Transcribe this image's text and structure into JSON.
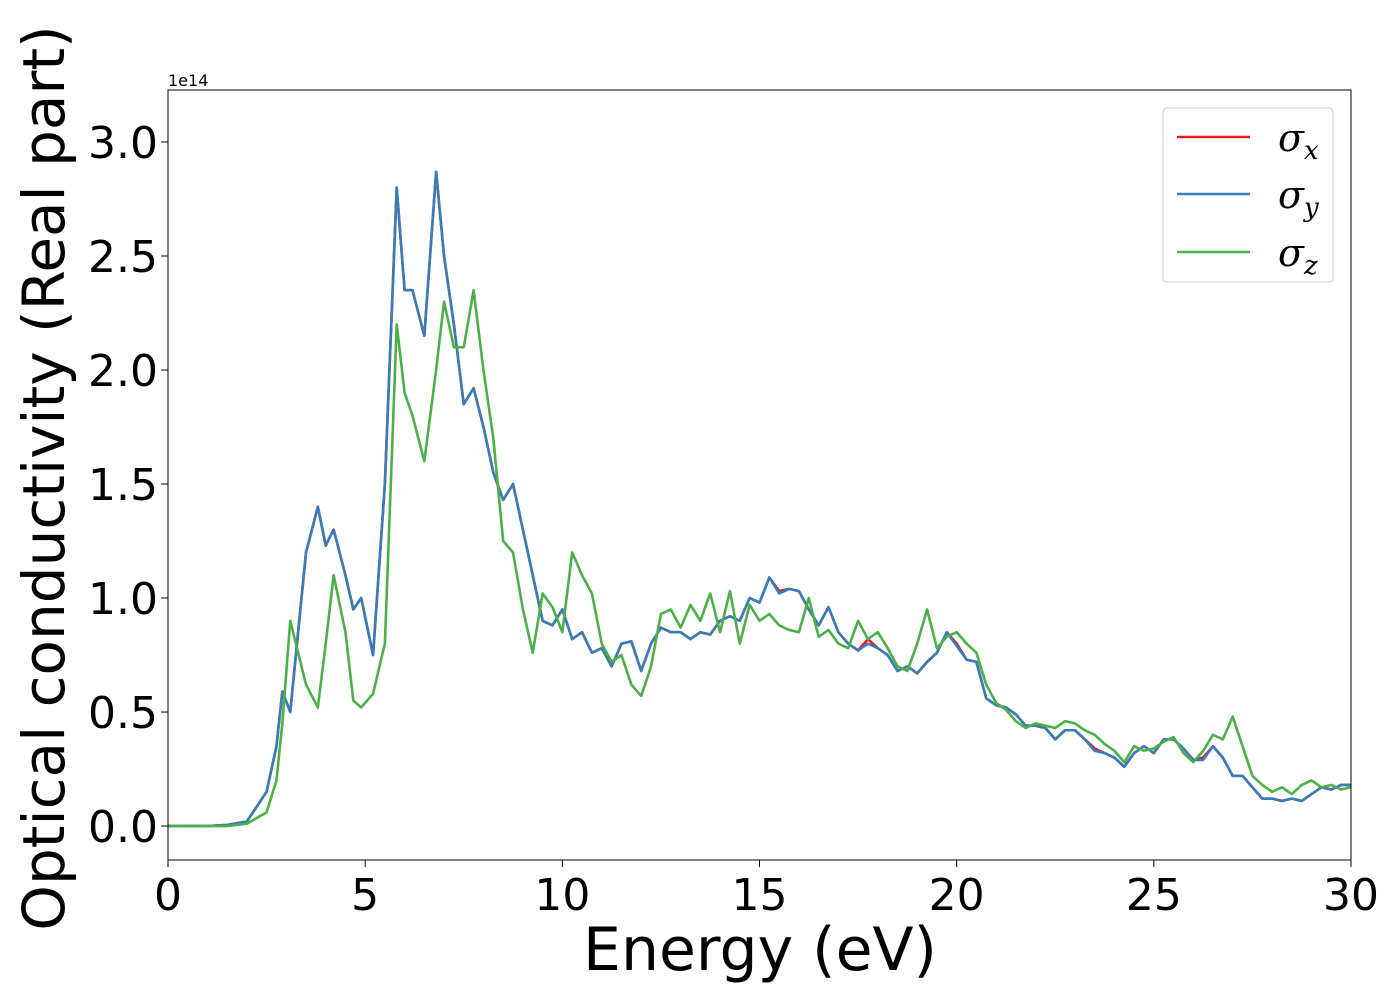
{
  "chart_data": {
    "type": "line",
    "x_label": "Energy (eV)",
    "y_label": "Optical conductivity (Real part)",
    "y_offset_label": "1e14",
    "x": [
      0,
      0.5,
      1,
      1.5,
      2,
      2.5,
      2.75,
      2.9,
      3.1,
      3.5,
      3.8,
      4.0,
      4.2,
      4.5,
      4.7,
      4.9,
      5.2,
      5.5,
      5.8,
      6.0,
      6.2,
      6.5,
      6.8,
      7.0,
      7.25,
      7.5,
      7.75,
      8,
      8.25,
      8.5,
      8.75,
      9,
      9.25,
      9.5,
      9.75,
      10,
      10.25,
      10.5,
      10.75,
      11,
      11.25,
      11.5,
      11.75,
      12,
      12.25,
      12.5,
      12.75,
      13,
      13.25,
      13.5,
      13.75,
      14,
      14.25,
      14.5,
      14.75,
      15,
      15.25,
      15.5,
      15.75,
      16,
      16.25,
      16.5,
      16.75,
      17,
      17.25,
      17.5,
      17.75,
      18,
      18.25,
      18.5,
      18.75,
      19,
      19.25,
      19.5,
      19.75,
      20,
      20.25,
      20.5,
      20.75,
      21,
      21.25,
      21.5,
      21.75,
      22,
      22.25,
      22.5,
      22.75,
      23,
      23.25,
      23.5,
      23.75,
      24,
      24.25,
      24.5,
      24.75,
      25,
      25.25,
      25.5,
      25.75,
      26,
      26.25,
      26.5,
      26.75,
      27,
      27.25,
      27.5,
      27.75,
      28,
      28.25,
      28.5,
      28.75,
      29,
      29.25,
      29.5,
      29.75,
      30
    ],
    "series": [
      {
        "name": "σx",
        "color": "#e41a1c",
        "values": [
          0,
          0,
          0,
          0.005,
          0.02,
          0.15,
          0.35,
          0.59,
          0.5,
          1.2,
          1.4,
          1.23,
          1.3,
          1.1,
          0.95,
          1.0,
          0.75,
          1.5,
          2.8,
          2.35,
          2.35,
          2.15,
          2.87,
          2.5,
          2.2,
          1.85,
          1.92,
          1.75,
          1.55,
          1.43,
          1.5,
          1.3,
          1.1,
          0.9,
          0.88,
          0.95,
          0.82,
          0.85,
          0.76,
          0.78,
          0.7,
          0.8,
          0.81,
          0.68,
          0.8,
          0.87,
          0.85,
          0.85,
          0.82,
          0.85,
          0.84,
          0.9,
          0.92,
          0.9,
          1.0,
          0.98,
          1.09,
          1.03,
          1.04,
          1.03,
          0.95,
          0.88,
          0.96,
          0.85,
          0.8,
          0.77,
          0.82,
          0.78,
          0.75,
          0.68,
          0.7,
          0.67,
          0.72,
          0.76,
          0.85,
          0.8,
          0.73,
          0.72,
          0.56,
          0.53,
          0.52,
          0.49,
          0.44,
          0.44,
          0.43,
          0.38,
          0.42,
          0.42,
          0.38,
          0.34,
          0.32,
          0.3,
          0.26,
          0.32,
          0.35,
          0.32,
          0.38,
          0.38,
          0.34,
          0.29,
          0.3,
          0.35,
          0.3,
          0.22,
          0.22,
          0.17,
          0.12,
          0.12,
          0.11,
          0.12,
          0.11,
          0.14,
          0.17,
          0.16,
          0.18,
          0.18
        ]
      },
      {
        "name": "σy",
        "color": "#377eb8",
        "values": [
          0,
          0,
          0,
          0.005,
          0.02,
          0.15,
          0.35,
          0.59,
          0.5,
          1.2,
          1.4,
          1.23,
          1.3,
          1.1,
          0.95,
          1.0,
          0.75,
          1.5,
          2.8,
          2.35,
          2.35,
          2.15,
          2.87,
          2.5,
          2.2,
          1.85,
          1.92,
          1.75,
          1.55,
          1.43,
          1.5,
          1.3,
          1.1,
          0.9,
          0.88,
          0.95,
          0.82,
          0.85,
          0.76,
          0.78,
          0.7,
          0.8,
          0.81,
          0.68,
          0.8,
          0.87,
          0.85,
          0.85,
          0.82,
          0.85,
          0.84,
          0.9,
          0.92,
          0.9,
          1.0,
          0.98,
          1.09,
          1.02,
          1.04,
          1.03,
          0.95,
          0.88,
          0.96,
          0.85,
          0.8,
          0.77,
          0.8,
          0.78,
          0.75,
          0.68,
          0.7,
          0.67,
          0.72,
          0.76,
          0.85,
          0.79,
          0.73,
          0.72,
          0.56,
          0.53,
          0.52,
          0.49,
          0.44,
          0.44,
          0.43,
          0.38,
          0.42,
          0.42,
          0.38,
          0.33,
          0.32,
          0.3,
          0.26,
          0.32,
          0.35,
          0.32,
          0.38,
          0.38,
          0.34,
          0.29,
          0.29,
          0.35,
          0.3,
          0.22,
          0.22,
          0.17,
          0.12,
          0.12,
          0.11,
          0.12,
          0.11,
          0.14,
          0.17,
          0.16,
          0.18,
          0.18
        ]
      },
      {
        "name": "σz",
        "color": "#4daf4a",
        "values": [
          0,
          0,
          0,
          0,
          0.01,
          0.06,
          0.2,
          0.45,
          0.9,
          0.62,
          0.52,
          0.8,
          1.1,
          0.85,
          0.55,
          0.52,
          0.58,
          0.8,
          2.2,
          1.9,
          1.8,
          1.6,
          2.0,
          2.3,
          2.1,
          2.1,
          2.35,
          2.0,
          1.7,
          1.25,
          1.2,
          0.95,
          0.76,
          1.02,
          0.96,
          0.85,
          1.2,
          1.1,
          1.02,
          0.8,
          0.72,
          0.75,
          0.62,
          0.57,
          0.7,
          0.93,
          0.95,
          0.87,
          0.97,
          0.9,
          1.02,
          0.85,
          1.03,
          0.8,
          0.97,
          0.9,
          0.93,
          0.88,
          0.86,
          0.85,
          1.0,
          0.83,
          0.86,
          0.8,
          0.78,
          0.9,
          0.82,
          0.85,
          0.78,
          0.7,
          0.68,
          0.8,
          0.95,
          0.78,
          0.83,
          0.85,
          0.8,
          0.76,
          0.62,
          0.54,
          0.51,
          0.46,
          0.43,
          0.45,
          0.44,
          0.43,
          0.46,
          0.45,
          0.42,
          0.4,
          0.36,
          0.33,
          0.28,
          0.35,
          0.33,
          0.34,
          0.37,
          0.39,
          0.32,
          0.28,
          0.33,
          0.4,
          0.38,
          0.48,
          0.35,
          0.22,
          0.18,
          0.15,
          0.17,
          0.14,
          0.18,
          0.2,
          0.17,
          0.18,
          0.16,
          0.17
        ]
      }
    ],
    "xlim": [
      0,
      30
    ],
    "xticks": [
      0,
      5,
      10,
      15,
      20,
      25,
      30
    ],
    "ylim": [
      -0.149,
      3.228
    ],
    "yticks": [
      {
        "value": 0,
        "label": "0.0"
      },
      {
        "value": 0.5,
        "label": "0.5"
      },
      {
        "value": 1,
        "label": "1.0"
      },
      {
        "value": 1.5,
        "label": "1.5"
      },
      {
        "value": 2,
        "label": "2.0"
      },
      {
        "value": 2.5,
        "label": "2.5"
      },
      {
        "value": 3,
        "label": "3.0"
      }
    ],
    "grid": false,
    "legend": "upper right"
  }
}
